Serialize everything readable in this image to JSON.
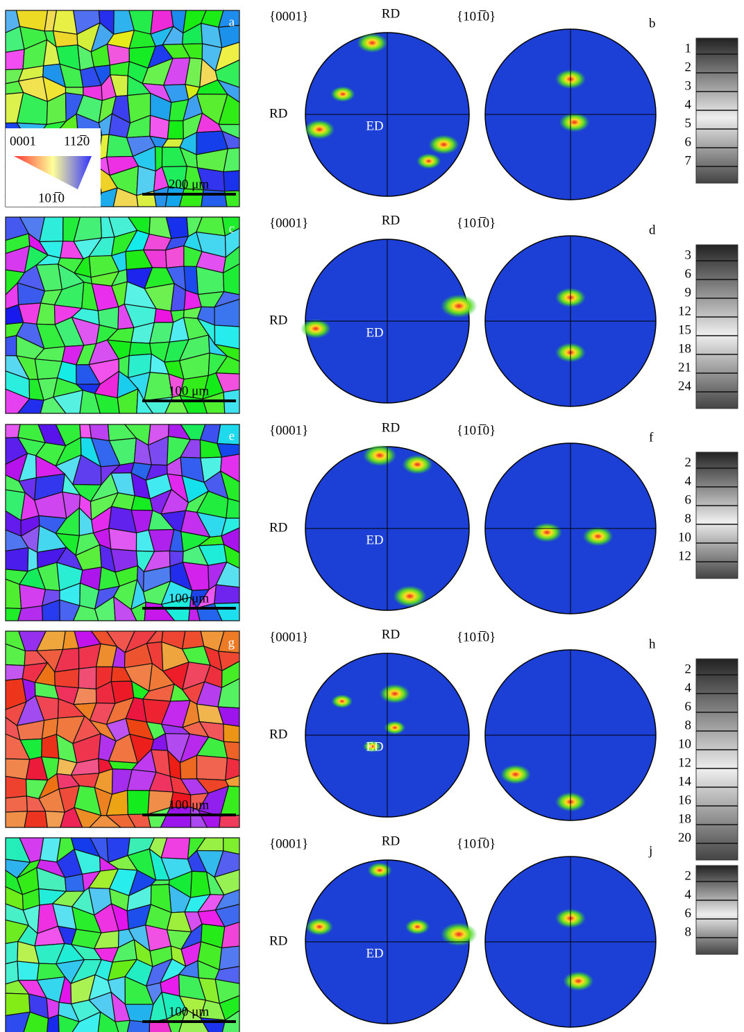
{
  "rows": [
    {
      "map": {
        "letter": "a",
        "scale": "200 μm"
      },
      "legend": {
        "top_left": "0001",
        "top_right": "112̅0",
        "bottom": "101̅0"
      },
      "poles": {
        "left_title": "{0001}",
        "rd_top": "RD",
        "right_title": "{101̅0}",
        "rd_side": "RD",
        "ed": "ED",
        "letter": "b"
      },
      "colorbar": [
        1,
        2,
        3,
        4,
        5,
        6,
        7
      ]
    },
    {
      "map": {
        "letter": "c",
        "scale": "100 μm"
      },
      "poles": {
        "left_title": "{0001}",
        "rd_top": "RD",
        "right_title": "{101̅0}",
        "rd_side": "RD",
        "ed": "ED",
        "letter": "d"
      },
      "colorbar": [
        3,
        6,
        9,
        12,
        15,
        18,
        21,
        24
      ]
    },
    {
      "map": {
        "letter": "e",
        "scale": "100 μm"
      },
      "poles": {
        "left_title": "{0001}",
        "rd_top": "RD",
        "right_title": "{101̅0}",
        "rd_side": "RD",
        "ed": "ED",
        "letter": "f"
      },
      "colorbar": [
        2,
        4,
        6,
        8,
        10,
        12
      ]
    },
    {
      "map": {
        "letter": "g",
        "scale": "100 μm"
      },
      "poles": {
        "left_title": "{0001}",
        "rd_top": "RD",
        "right_title": "{101̅0}",
        "rd_side": "RD",
        "ed": "ED",
        "letter": "h"
      },
      "colorbar": [
        2,
        4,
        6,
        8,
        10,
        12,
        14,
        16,
        18,
        20
      ]
    },
    {
      "map": {
        "scale": "100 μm"
      },
      "poles": {
        "left_title": "{0001}",
        "rd_top": "RD",
        "right_title": "{101̅0}",
        "rd_side": "RD",
        "ed": "ED",
        "letter": "j"
      },
      "colorbar": [
        2,
        4,
        6,
        8
      ]
    }
  ]
}
